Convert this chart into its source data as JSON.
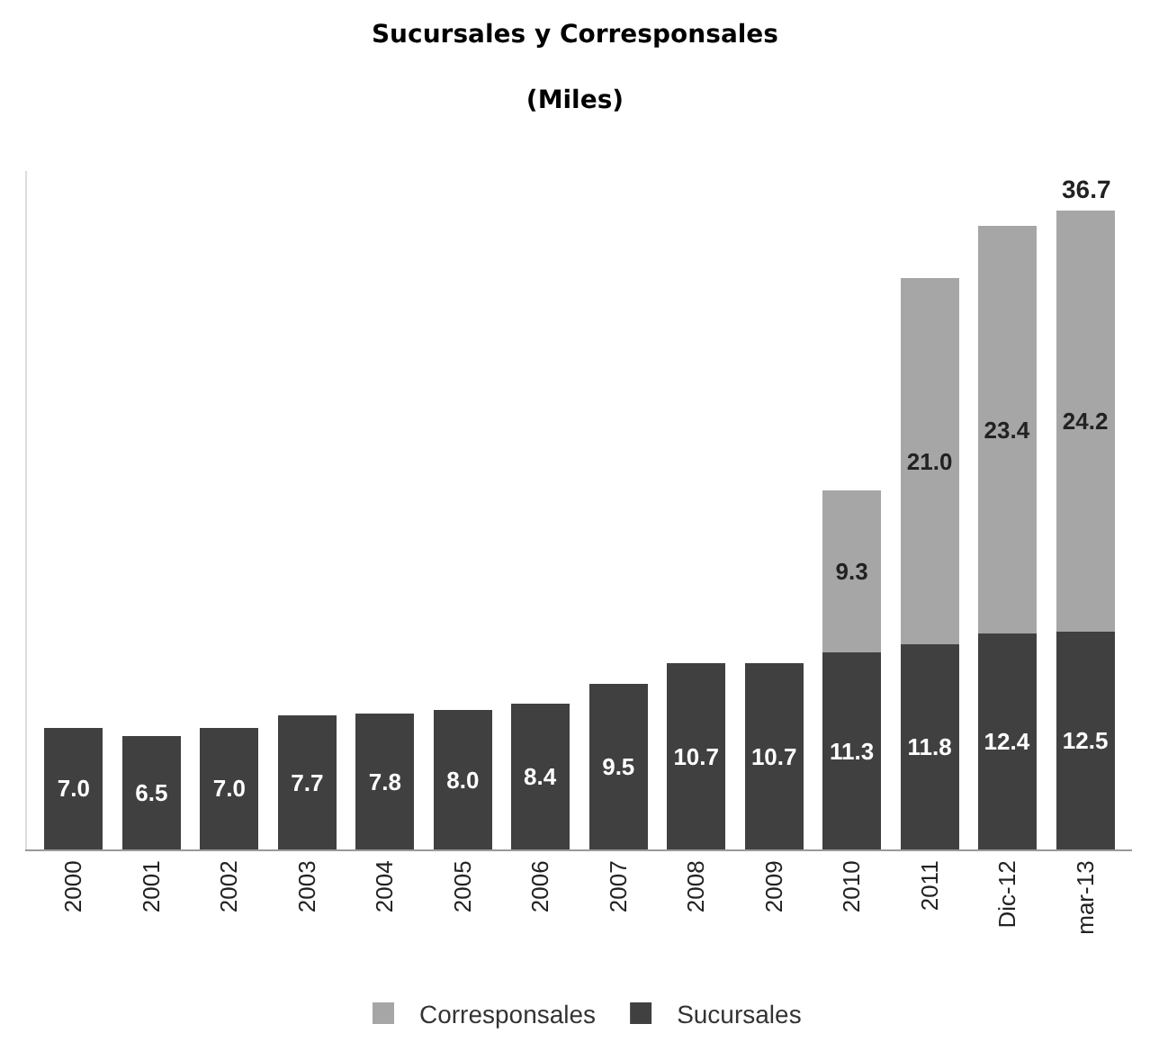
{
  "chart_data": {
    "type": "bar",
    "title": "Sucursales y Corresponsales",
    "subtitle": "(Miles)",
    "categories": [
      "2000",
      "2001",
      "2002",
      "2003",
      "2004",
      "2005",
      "2006",
      "2007",
      "2008",
      "2009",
      "2010",
      "2011",
      "Dic-12",
      "mar-13"
    ],
    "stacked": true,
    "grid": false,
    "legend": "bottom",
    "tick_labels": "x",
    "series": [
      {
        "name": "Sucursales",
        "color": "#404040",
        "values": [
          7.0,
          6.5,
          7.0,
          7.7,
          7.8,
          8.0,
          8.4,
          9.5,
          10.7,
          10.7,
          11.3,
          11.8,
          12.4,
          12.5
        ],
        "value_labels": [
          "7.0",
          "6.5",
          "7.0",
          "7.7",
          "7.8",
          "8.0",
          "8.4",
          "9.5",
          "10.7",
          "10.7",
          "11.3",
          "11.8",
          "12.4",
          "12.5"
        ]
      },
      {
        "name": "Corresponsales",
        "color": "#a6a6a6",
        "values": [
          null,
          null,
          null,
          null,
          null,
          null,
          null,
          null,
          null,
          null,
          9.3,
          21.0,
          23.4,
          24.2
        ],
        "value_labels": [
          null,
          null,
          null,
          null,
          null,
          null,
          null,
          null,
          null,
          null,
          "9.3",
          "21.0",
          "23.4",
          "24.2"
        ]
      }
    ],
    "totals": [
      null,
      null,
      null,
      null,
      null,
      null,
      null,
      null,
      null,
      null,
      null,
      null,
      null,
      "36.7"
    ]
  }
}
